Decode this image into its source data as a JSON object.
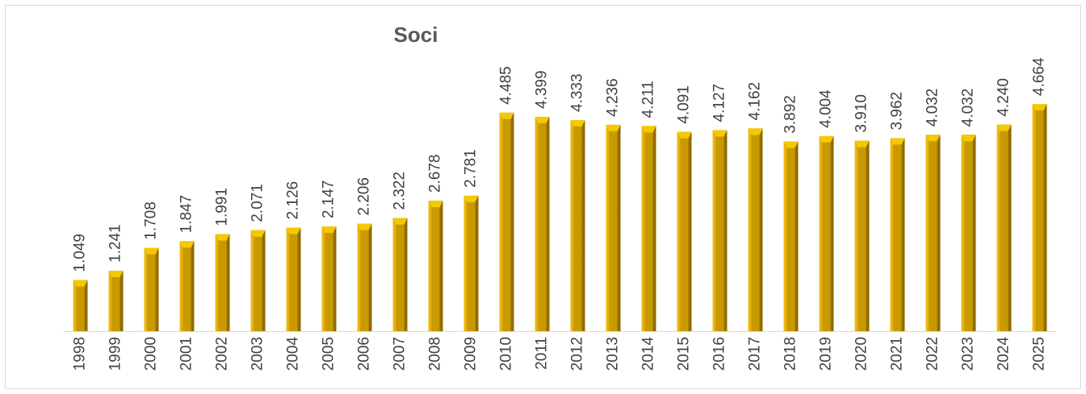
{
  "chart_data": {
    "type": "bar",
    "title": "Soci",
    "categories": [
      "1998",
      "1999",
      "2000",
      "2001",
      "2002",
      "2003",
      "2004",
      "2005",
      "2006",
      "2007",
      "2008",
      "2009",
      "2010",
      "2011",
      "2012",
      "2013",
      "2014",
      "2015",
      "2016",
      "2017",
      "2018",
      "2019",
      "2020",
      "2021",
      "2022",
      "2023",
      "2024",
      "2025"
    ],
    "values": [
      1049,
      1241,
      1708,
      1847,
      1991,
      2071,
      2126,
      2147,
      2206,
      2322,
      2678,
      2781,
      4485,
      4399,
      4333,
      4236,
      4211,
      4091,
      4127,
      4162,
      3892,
      4004,
      3910,
      3962,
      4032,
      4032,
      4240,
      4664
    ],
    "value_labels": [
      "1.049",
      "1.241",
      "1.708",
      "1.847",
      "1.991",
      "2.071",
      "2.126",
      "2.147",
      "2.206",
      "2.322",
      "2.678",
      "2.781",
      "4.485",
      "4.399",
      "4.333",
      "4.236",
      "4.211",
      "4.091",
      "4.127",
      "4.162",
      "3.892",
      "4.004",
      "3.910",
      "3.962",
      "4.032",
      "4.032",
      "4.240",
      "4.664"
    ],
    "color": "#c99a00"
  }
}
